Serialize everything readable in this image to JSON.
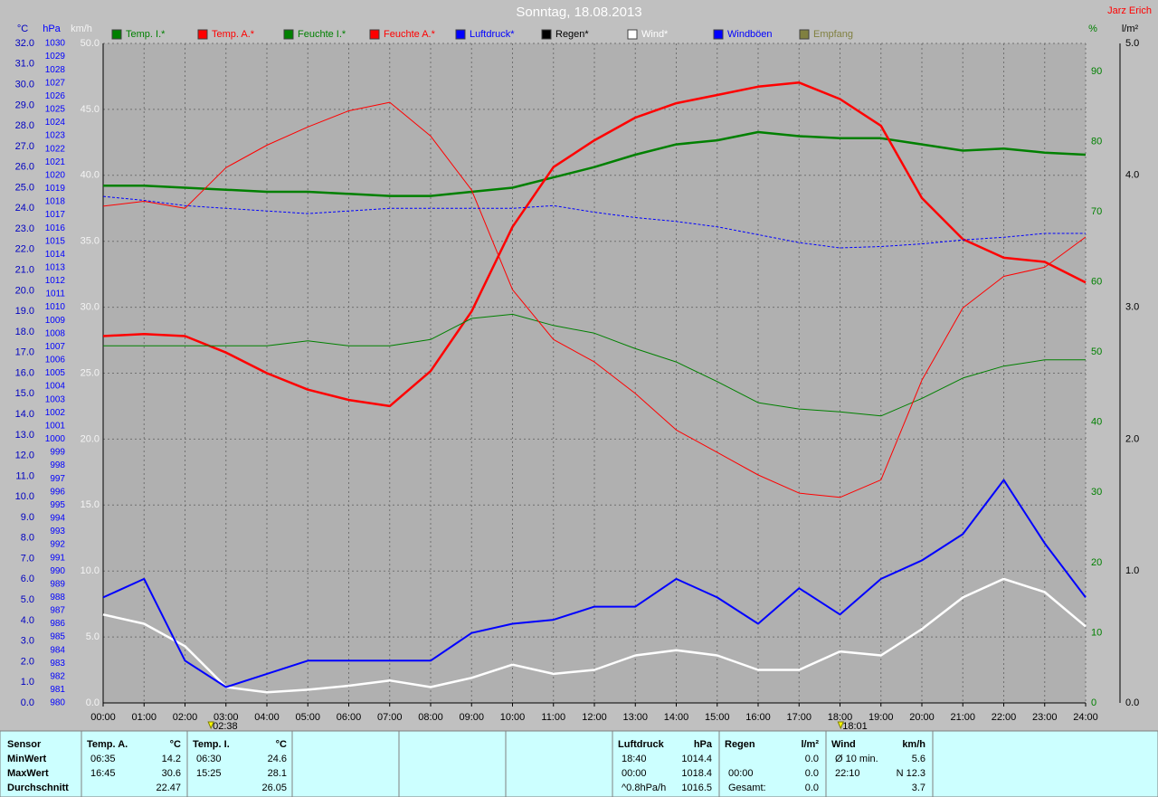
{
  "chart_data": {
    "type": "line",
    "title": "Sonntag, 18.08.2013",
    "author": "Jarz Erich",
    "grid": true,
    "xlim": [
      0,
      24
    ],
    "xticks": [
      {
        "value": 0,
        "label": "00:00"
      },
      {
        "value": 1,
        "label": "01:00"
      },
      {
        "value": 2,
        "label": "02:00"
      },
      {
        "value": 3,
        "label": "03:00"
      },
      {
        "value": 4,
        "label": "04:00"
      },
      {
        "value": 5,
        "label": "05:00"
      },
      {
        "value": 6,
        "label": "06:00"
      },
      {
        "value": 7,
        "label": "07:00"
      },
      {
        "value": 8,
        "label": "08:00"
      },
      {
        "value": 9,
        "label": "09:00"
      },
      {
        "value": 10,
        "label": "10:00"
      },
      {
        "value": 11,
        "label": "11:00"
      },
      {
        "value": 12,
        "label": "12:00"
      },
      {
        "value": 13,
        "label": "13:00"
      },
      {
        "value": 14,
        "label": "14:00"
      },
      {
        "value": 15,
        "label": "15:00"
      },
      {
        "value": 16,
        "label": "16:00"
      },
      {
        "value": 17,
        "label": "17:00"
      },
      {
        "value": 18,
        "label": "18:00"
      },
      {
        "value": 19,
        "label": "19:00"
      },
      {
        "value": 20,
        "label": "20:00"
      },
      {
        "value": 21,
        "label": "21:00"
      },
      {
        "value": 22,
        "label": "22:00"
      },
      {
        "value": 23,
        "label": "23:00"
      },
      {
        "value": 24,
        "label": "24:00"
      }
    ],
    "markers": [
      {
        "value": 2.633,
        "label": "02:38"
      },
      {
        "value": 18.017,
        "label": "18:01"
      }
    ],
    "axes": {
      "temp": {
        "unit": "°C",
        "color": "#0000c0",
        "lim": [
          0,
          32
        ],
        "ticks": [
          {
            "value": 0,
            "label": "0.0"
          },
          {
            "value": 1,
            "label": "1.0"
          },
          {
            "value": 2,
            "label": "2.0"
          },
          {
            "value": 3,
            "label": "3.0"
          },
          {
            "value": 4,
            "label": "4.0"
          },
          {
            "value": 5,
            "label": "5.0"
          },
          {
            "value": 6,
            "label": "6.0"
          },
          {
            "value": 7,
            "label": "7.0"
          },
          {
            "value": 8,
            "label": "8.0"
          },
          {
            "value": 9,
            "label": "9.0"
          },
          {
            "value": 10,
            "label": "10.0"
          },
          {
            "value": 11,
            "label": "11.0"
          },
          {
            "value": 12,
            "label": "12.0"
          },
          {
            "value": 13,
            "label": "13.0"
          },
          {
            "value": 14,
            "label": "14.0"
          },
          {
            "value": 15,
            "label": "15.0"
          },
          {
            "value": 16,
            "label": "16.0"
          },
          {
            "value": 17,
            "label": "17.0"
          },
          {
            "value": 18,
            "label": "18.0"
          },
          {
            "value": 19,
            "label": "19.0"
          },
          {
            "value": 20,
            "label": "20.0"
          },
          {
            "value": 21,
            "label": "21.0"
          },
          {
            "value": 22,
            "label": "22.0"
          },
          {
            "value": 23,
            "label": "23.0"
          },
          {
            "value": 24,
            "label": "24.0"
          },
          {
            "value": 25,
            "label": "25.0"
          },
          {
            "value": 26,
            "label": "26.0"
          },
          {
            "value": 27,
            "label": "27.0"
          },
          {
            "value": 28,
            "label": "28.0"
          },
          {
            "value": 29,
            "label": "29.0"
          },
          {
            "value": 30,
            "label": "30.0"
          },
          {
            "value": 31,
            "label": "31.0"
          },
          {
            "value": 32,
            "label": "32.0"
          }
        ]
      },
      "hpa": {
        "unit": "hPa",
        "color": "#0000ff",
        "lim": [
          980,
          1030
        ],
        "ticks": [
          980,
          981,
          982,
          983,
          984,
          985,
          986,
          987,
          988,
          989,
          990,
          991,
          992,
          993,
          994,
          995,
          996,
          997,
          998,
          999,
          1000,
          1001,
          1002,
          1003,
          1004,
          1005,
          1006,
          1007,
          1008,
          1009,
          1010,
          1011,
          1012,
          1013,
          1014,
          1015,
          1016,
          1017,
          1018,
          1019,
          1020,
          1021,
          1022,
          1023,
          1024,
          1025,
          1026,
          1027,
          1028,
          1029,
          1030
        ]
      },
      "kmh": {
        "unit": "km/h",
        "color": "#f4f4f4",
        "lim": [
          0,
          50
        ],
        "ticks": [
          {
            "value": 0,
            "label": "0.0"
          },
          {
            "value": 5,
            "label": "5.0"
          },
          {
            "value": 10,
            "label": "10.0"
          },
          {
            "value": 15,
            "label": "15.0"
          },
          {
            "value": 20,
            "label": "20.0"
          },
          {
            "value": 25,
            "label": "25.0"
          },
          {
            "value": 30,
            "label": "30.0"
          },
          {
            "value": 35,
            "label": "35.0"
          },
          {
            "value": 40,
            "label": "40.0"
          },
          {
            "value": 45,
            "label": "45.0"
          },
          {
            "value": 50,
            "label": "50.0"
          }
        ]
      },
      "hum": {
        "unit": "%",
        "color": "#008000",
        "lim": [
          0,
          94
        ],
        "ticks": [
          0,
          10,
          20,
          30,
          40,
          50,
          60,
          70,
          80,
          90
        ]
      },
      "rain": {
        "unit": "l/m²",
        "color": "#000000",
        "lim": [
          0,
          5
        ],
        "ticks": [
          {
            "value": 0,
            "label": "0.0"
          },
          {
            "value": 1,
            "label": "1.0"
          },
          {
            "value": 2,
            "label": "2.0"
          },
          {
            "value": 3,
            "label": "3.0"
          },
          {
            "value": 4,
            "label": "4.0"
          },
          {
            "value": 5,
            "label": "5.0"
          }
        ]
      }
    },
    "x": [
      0,
      1,
      2,
      3,
      4,
      5,
      6,
      7,
      8,
      9,
      10,
      11,
      12,
      13,
      14,
      15,
      16,
      17,
      18,
      19,
      20,
      21,
      22,
      23,
      24
    ],
    "series": [
      {
        "name": "Temp. I.*",
        "color": "#008000",
        "axis": "temp",
        "line_width": 2.5,
        "dashed": false,
        "values": [
          25.1,
          25.1,
          25.0,
          24.9,
          24.8,
          24.8,
          24.7,
          24.6,
          24.6,
          24.8,
          25.0,
          25.5,
          26.0,
          26.6,
          27.1,
          27.3,
          27.7,
          27.5,
          27.4,
          27.4,
          27.1,
          26.8,
          26.9,
          26.7,
          26.6
        ]
      },
      {
        "name": "Temp. A.*",
        "color": "#ff0000",
        "axis": "temp",
        "line_width": 2.5,
        "dashed": false,
        "values": [
          17.8,
          17.9,
          17.8,
          17.0,
          16.0,
          15.2,
          14.7,
          14.4,
          16.1,
          19.0,
          23.1,
          26.0,
          27.3,
          28.4,
          29.1,
          29.5,
          29.9,
          30.1,
          29.3,
          28.0,
          24.5,
          22.5,
          21.6,
          21.4,
          20.4
        ]
      },
      {
        "name": "Feuchte I.*",
        "color": "#008000",
        "axis": "hum",
        "line_width": 1,
        "dashed": false,
        "values": [
          50.9,
          50.9,
          50.9,
          50.9,
          50.9,
          51.6,
          50.9,
          50.9,
          51.8,
          54.8,
          55.4,
          53.8,
          52.7,
          50.5,
          48.6,
          45.8,
          42.8,
          41.9,
          41.5,
          40.9,
          43.4,
          46.3,
          48.0,
          48.9,
          48.9
        ]
      },
      {
        "name": "Feuchte A.*",
        "color": "#ff0000",
        "axis": "hum",
        "line_width": 1,
        "dashed": false,
        "values": [
          70.8,
          71.5,
          70.5,
          76.3,
          79.5,
          82.1,
          84.4,
          85.6,
          80.8,
          73.1,
          58.9,
          51.8,
          48.6,
          44.1,
          38.9,
          35.7,
          32.5,
          29.9,
          29.3,
          31.8,
          46.0,
          56.3,
          60.8,
          62.1,
          66.4
        ]
      },
      {
        "name": "Luftdruck*",
        "color": "#0000ff",
        "axis": "hpa",
        "line_width": 1,
        "dashed": true,
        "values": [
          1018.4,
          1018.1,
          1017.7,
          1017.5,
          1017.3,
          1017.1,
          1017.3,
          1017.5,
          1017.5,
          1017.5,
          1017.5,
          1017.7,
          1017.2,
          1016.8,
          1016.5,
          1016.1,
          1015.5,
          1014.9,
          1014.5,
          1014.6,
          1014.8,
          1015.1,
          1015.3,
          1015.6,
          1015.6
        ]
      },
      {
        "name": "Regen*",
        "color": "#000000",
        "axis": "rain",
        "line_width": 1,
        "dashed": false,
        "values": [
          0,
          0,
          0,
          0,
          0,
          0,
          0,
          0,
          0,
          0,
          0,
          0,
          0,
          0,
          0,
          0,
          0,
          0,
          0,
          0,
          0,
          0,
          0,
          0,
          0
        ]
      },
      {
        "name": "Wind*",
        "color": "#ffffff",
        "axis": "kmh",
        "line_width": 2.5,
        "dashed": false,
        "values": [
          6.7,
          6.0,
          4.3,
          1.2,
          0.8,
          1.0,
          1.3,
          1.7,
          1.2,
          1.9,
          2.9,
          2.2,
          2.5,
          3.6,
          4.0,
          3.6,
          2.5,
          2.5,
          3.9,
          3.6,
          5.6,
          8.0,
          9.4,
          8.4,
          5.8
        ]
      },
      {
        "name": "Windböen",
        "color": "#0000ff",
        "axis": "kmh",
        "line_width": 2,
        "dashed": false,
        "values": [
          8.0,
          9.4,
          3.2,
          1.2,
          2.2,
          3.2,
          3.2,
          3.2,
          3.2,
          5.3,
          6.0,
          6.3,
          7.3,
          7.3,
          9.4,
          8.0,
          6.0,
          8.7,
          6.7,
          9.4,
          10.8,
          12.8,
          16.9,
          12.1,
          8.0
        ]
      },
      {
        "name": "Empfang",
        "color": "#808040",
        "axis": "rain",
        "line_width": 1,
        "dashed": false,
        "values": [
          null,
          null,
          null,
          null,
          null,
          null,
          null,
          null,
          null,
          null,
          null,
          null,
          null,
          null,
          null,
          null,
          null,
          null,
          null,
          null,
          null,
          null,
          null,
          null,
          null
        ]
      }
    ]
  },
  "stats_table": {
    "row_labels": [
      "Sensor",
      "MinWert",
      "MaxWert",
      "Durchschnitt"
    ],
    "groups": [
      {
        "header": [
          "Temp. A.",
          "°C"
        ],
        "rows": [
          [
            "06:35",
            "14.2"
          ],
          [
            "16:45",
            "30.6"
          ],
          [
            null,
            "22.47"
          ]
        ]
      },
      {
        "header": [
          "Temp. I.",
          "°C"
        ],
        "rows": [
          [
            "06:30",
            "24.6"
          ],
          [
            "15:25",
            "28.1"
          ],
          [
            null,
            "26.05"
          ]
        ]
      },
      {
        "header": [
          "Luftdruck",
          "hPa"
        ],
        "rows": [
          [
            "18:40",
            "1014.4"
          ],
          [
            "00:00",
            "1018.4"
          ],
          [
            "^0.8hPa/h",
            "1016.5"
          ]
        ]
      },
      {
        "header": [
          "Regen",
          "l/m²"
        ],
        "rows": [
          [
            null,
            "0.0"
          ],
          [
            "00:00",
            "0.0"
          ],
          [
            "Gesamt:",
            "0.0"
          ]
        ]
      },
      {
        "header": [
          "Wind",
          "km/h"
        ],
        "rows": [
          [
            "Ø 10 min.",
            "5.6"
          ],
          [
            "22:10",
            "N 12.3"
          ],
          [
            null,
            "3.7"
          ]
        ]
      }
    ]
  }
}
